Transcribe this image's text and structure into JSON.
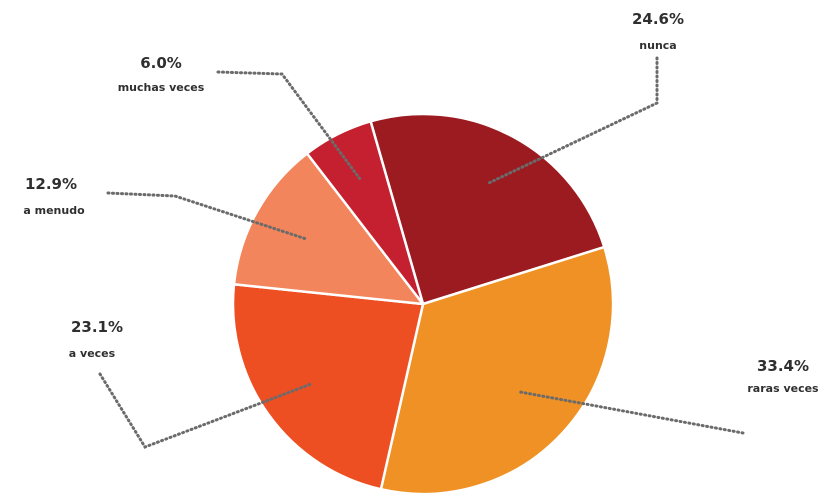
{
  "chart_data": {
    "type": "pie",
    "slices": [
      {
        "label": "nunca",
        "value": 24.6,
        "value_label": "24.6%",
        "color": "#9b1b20"
      },
      {
        "label": "raras veces",
        "value": 33.4,
        "value_label": "33.4%",
        "color": "#ef9124"
      },
      {
        "label": "a veces",
        "value": 23.1,
        "value_label": "23.1%",
        "color": "#ee4f22"
      },
      {
        "label": "a menudo",
        "value": 12.9,
        "value_label": "12.9%",
        "color": "#f2855b"
      },
      {
        "label": "muchas veces",
        "value": 6.0,
        "value_label": "6.0%",
        "color": "#c4202f"
      }
    ],
    "legend": "none",
    "label_style": "dotted leader lines"
  }
}
